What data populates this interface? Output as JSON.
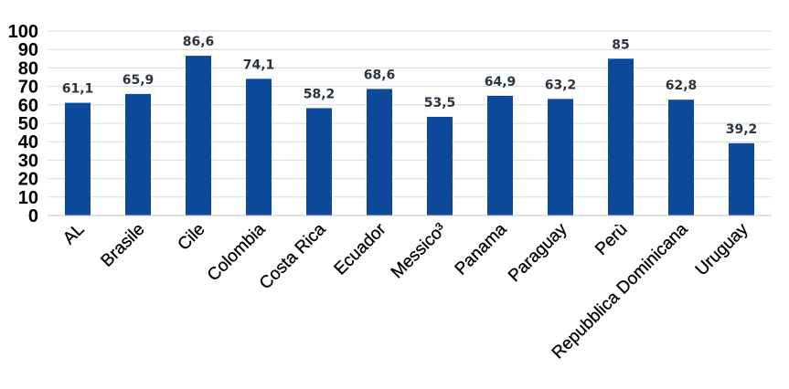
{
  "chart_data": {
    "type": "bar",
    "categories": [
      "AL",
      "Brasile",
      "Cile",
      "Colombia",
      "Costa Rica",
      "Ecuador",
      "Messico³",
      "Panama",
      "Paraguay",
      "Perù",
      "Repubblica Dominicana",
      "Uruguay"
    ],
    "values": [
      61.1,
      65.9,
      86.6,
      74.1,
      58.2,
      68.6,
      53.5,
      64.9,
      63.2,
      85,
      62.8,
      39.2
    ],
    "data_labels": [
      "61,1",
      "65,9",
      "86,6",
      "74,1",
      "58,2",
      "68,6",
      "53,5",
      "64,9",
      "63,2",
      "85",
      "62,8",
      "39,2"
    ],
    "y_ticks": [
      "0",
      "10",
      "20",
      "30",
      "40",
      "50",
      "60",
      "70",
      "80",
      "90",
      "100"
    ],
    "ylim": [
      0,
      100
    ],
    "grid": true,
    "legend": "none",
    "bar_color": "#0e4a9b",
    "title": "",
    "xlabel": "",
    "ylabel": ""
  }
}
